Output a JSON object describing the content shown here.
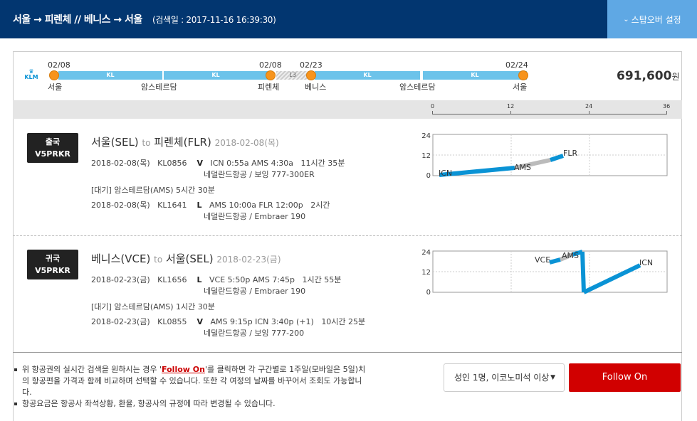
{
  "header": {
    "route": "서울 → 피렌체 // 베니스 → 서울",
    "search_stamp": "(검색일 : 2017-11-16 16:39:30)",
    "stopover_button": "스탑오버 설정"
  },
  "timeline": {
    "airline_logo": "KLM",
    "price": "691,600",
    "price_unit": "원",
    "segments": [
      {
        "label": "KL"
      },
      {
        "label": "KL"
      },
      {
        "label": "13"
      },
      {
        "label": "KL"
      },
      {
        "label": "KL"
      }
    ],
    "dates": [
      "02/08",
      "02/08",
      "02/23",
      "02/24"
    ],
    "cities": [
      "서울",
      "암스테르담",
      "피렌체",
      "베니스",
      "암스테르담",
      "서울"
    ],
    "axis_ticks": [
      "0",
      "12",
      "24",
      "36"
    ]
  },
  "legs": [
    {
      "badge_top": "출국",
      "badge_code": "V5PRKR",
      "origin": "서울(SEL)",
      "to": "to",
      "destination": "피렌체(FLR)",
      "date": "2018-02-08(목)",
      "flights": [
        {
          "date": "2018-02-08(목)",
          "flight": "KL0856",
          "class": "V",
          "times": "ICN 0:55a AMS 4:30a",
          "duration": "11시간 35분",
          "aircraft": "네덜란드항공 / 보잉 777-300ER"
        }
      ],
      "layover": "[대기] 암스테르담(AMS)   5시간 30분",
      "flights2": [
        {
          "date": "2018-02-08(목)",
          "flight": "KL1641",
          "class": "L",
          "times": "AMS 10:00a FLR 12:00p",
          "duration": "2시간",
          "aircraft": "네덜란드항공 / Embraer 190"
        }
      ],
      "chart_labels": {
        "y_top": "24",
        "y_mid": "12",
        "y_bot": "0",
        "a": "ICN",
        "b": "AMS",
        "c": "FLR"
      }
    },
    {
      "badge_top": "귀국",
      "badge_code": "V5PRKR",
      "origin": "베니스(VCE)",
      "to": "to",
      "destination": "서울(SEL)",
      "date": "2018-02-23(금)",
      "flights": [
        {
          "date": "2018-02-23(금)",
          "flight": "KL1656",
          "class": "L",
          "times": "VCE 5:50p AMS 7:45p",
          "duration": "1시간 55분",
          "aircraft": "네덜란드항공 / Embraer 190"
        }
      ],
      "layover": "[대기] 암스테르담(AMS)   1시간 30분",
      "flights2": [
        {
          "date": "2018-02-23(금)",
          "flight": "KL0855",
          "class": "V",
          "times": "AMS 9:15p ICN 3:40p (+1)",
          "duration": "10시간 25분",
          "aircraft": "네덜란드항공 / 보잉 777-200"
        }
      ],
      "chart_labels": {
        "y_top": "24",
        "y_mid": "12",
        "y_bot": "0",
        "a": "VCE",
        "b": "AMS",
        "c": "ICN"
      }
    }
  ],
  "notes": {
    "line1_pre": "위 항공권의 실시간 검색을 원하시는 경우 '",
    "line1_link": "Follow On",
    "line1_post": "'를 클릭하면 각 구간별로 1주일(모바일은 5일)치의 항공편을 가격과 함께 비교하며 선택할 수 있습니다. 또한 각 여정의 날짜를 바꾸어서 조회도 가능합니다.",
    "line2": "항공요금은 항공사 좌석상황, 환율, 항공사의 규정에 따라 변경될 수 있습니다."
  },
  "controls": {
    "passenger_select": "성인 1명, 이코노미석 이상",
    "follow_button": "Follow On"
  },
  "colors": {
    "header": "#023670",
    "accent": "#5fa8e4",
    "segment": "#6cc3ea",
    "dot": "#f7941d",
    "follow": "#d10000",
    "flight_line": "#0a93d5",
    "layover_line": "#bbbbbb"
  }
}
